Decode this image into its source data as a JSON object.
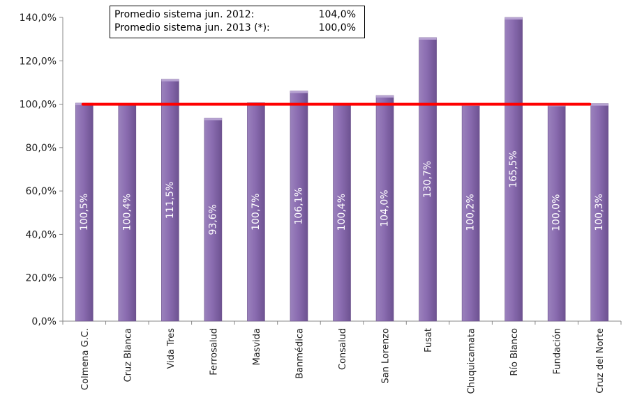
{
  "chart_data": {
    "type": "bar",
    "categories": [
      "Colmena G.C.",
      "Cruz Blanca",
      "Vida Tres",
      "Ferrosalud",
      "Masvida",
      "Banmédica",
      "Consalud",
      "San Lorenzo",
      "Fusat",
      "Chuquicamata",
      "Río Blanco",
      "Fundación",
      "Cruz del Norte"
    ],
    "values": [
      100.5,
      100.4,
      111.5,
      93.6,
      100.7,
      106.1,
      100.4,
      104.0,
      130.7,
      100.2,
      165.5,
      100.0,
      100.3
    ],
    "data_labels": [
      "100,5%",
      "100,4%",
      "111,5%",
      "93,6%",
      "100,7%",
      "106,1%",
      "100,4%",
      "104,0%",
      "130,7%",
      "100,2%",
      "165,5%",
      "100,0%",
      "100,3%"
    ],
    "ylim": [
      0,
      140
    ],
    "yticks": [
      0,
      20,
      40,
      60,
      80,
      100,
      120,
      140
    ],
    "ytick_labels": [
      "0,0%",
      "20,0%",
      "40,0%",
      "60,0%",
      "80,0%",
      "100,0%",
      "120,0%",
      "140,0%"
    ],
    "reference_line": 100,
    "bar_color": "#8064a2",
    "line_color": "#ff0000",
    "title": "",
    "xlabel": "",
    "ylabel": "",
    "legend_placement": "top-center"
  },
  "legend": {
    "row1_label": "Promedio sistema jun. 2012:",
    "row1_value": "104,0%",
    "row2_label": "Promedio sistema jun. 2013 (*):",
    "row2_value": "100,0%"
  }
}
